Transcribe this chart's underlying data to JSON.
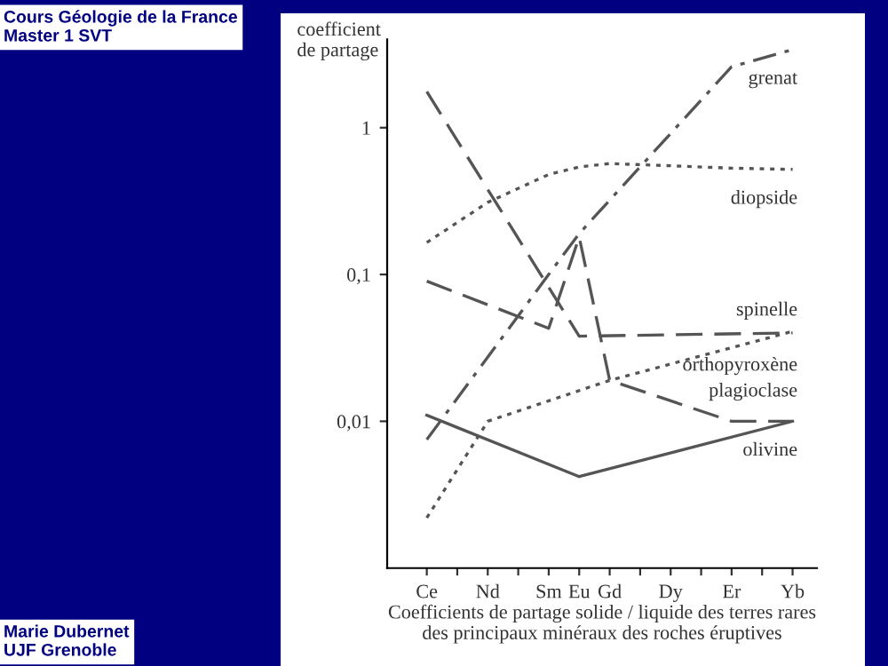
{
  "chart_data": {
    "type": "line",
    "ylabel": "coefficient\nde partage",
    "xlabel": "Coefficients de partage solide / liquide des terres rares\ndes principaux minéraux des roches éruptives",
    "annotations": [
      "Cours Géologie de la France\nMaster 1 SVT",
      "Marie Dubernet\nUJF Grenoble"
    ],
    "log": "y",
    "grid": false,
    "legend": false,
    "marker": "none",
    "categories": [
      "Ce",
      null,
      "Nd",
      null,
      "Sm",
      "Eu",
      "Gd",
      null,
      "Dy",
      null,
      "Er",
      null,
      "Yb"
    ],
    "ylim": [
      0.001,
      4
    ],
    "yticks": [
      {
        "value": 0.01,
        "label": "0,01"
      },
      {
        "value": 0.1,
        "label": "0,1"
      },
      {
        "value": 1,
        "label": "1"
      }
    ],
    "series": [
      {
        "name": "grenat",
        "color": "#555555",
        "line_style": "dashdot",
        "values": [
          0.0075,
          null,
          null,
          null,
          0.1,
          0.19,
          null,
          null,
          null,
          null,
          2.6,
          null,
          3.4
        ]
      },
      {
        "name": "diopside",
        "color": "#555555",
        "line_style": "dotted",
        "values": [
          0.165,
          null,
          0.31,
          null,
          0.48,
          0.54,
          0.57,
          null,
          0.55,
          null,
          0.53,
          null,
          0.52
        ]
      },
      {
        "name": "spinelle",
        "color": "#555555",
        "line_style": "dashed",
        "values": [
          1.76,
          null,
          null,
          null,
          null,
          0.038,
          null,
          null,
          null,
          null,
          null,
          null,
          0.04
        ]
      },
      {
        "name": "orthopyroxène",
        "color": "#555555",
        "line_style": "dotted",
        "values": [
          0.0022,
          null,
          0.01,
          null,
          null,
          null,
          0.019,
          null,
          null,
          null,
          null,
          null,
          0.041
        ]
      },
      {
        "name": "plagioclase",
        "color": "#555555",
        "line_style": "dashed",
        "values": [
          0.09,
          null,
          null,
          null,
          0.043,
          0.18,
          0.019,
          null,
          null,
          null,
          0.01,
          null,
          0.01
        ]
      },
      {
        "name": "olivine",
        "color": "#555555",
        "line_style": "solid",
        "values": [
          0.011,
          null,
          null,
          null,
          null,
          0.0042,
          null,
          null,
          null,
          null,
          null,
          null,
          0.01
        ]
      }
    ]
  }
}
